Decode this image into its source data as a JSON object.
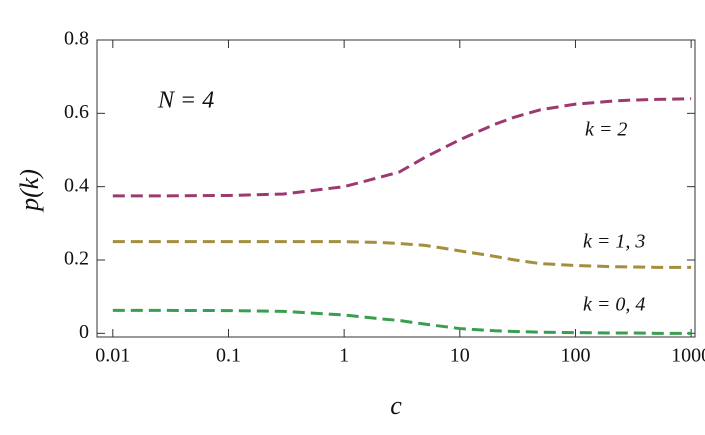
{
  "chart_data": {
    "type": "line",
    "x_label": "c",
    "y_label": "p(k)",
    "annotation": "N = 4",
    "x": [
      0.01,
      0.03,
      0.1,
      0.3,
      1,
      2,
      3,
      5,
      10,
      20,
      30,
      50,
      100,
      200,
      300,
      500,
      1000
    ],
    "series": [
      {
        "name": "k = 2",
        "color": "#9b3a72",
        "values": [
          0.375,
          0.375,
          0.376,
          0.38,
          0.4,
          0.425,
          0.44,
          0.48,
          0.528,
          0.57,
          0.59,
          0.61,
          0.625,
          0.633,
          0.636,
          0.638,
          0.64
        ]
      },
      {
        "name": "k = 1, 3",
        "color": "#a38f3e",
        "values": [
          0.25,
          0.25,
          0.25,
          0.25,
          0.25,
          0.248,
          0.245,
          0.24,
          0.225,
          0.21,
          0.2,
          0.19,
          0.185,
          0.182,
          0.181,
          0.18,
          0.18
        ]
      },
      {
        "name": "k = 0, 4",
        "color": "#3a9e50",
        "values": [
          0.0625,
          0.0625,
          0.062,
          0.06,
          0.05,
          0.04,
          0.035,
          0.025,
          0.013,
          0.007,
          0.005,
          0.003,
          0.002,
          0.001,
          0.001,
          0.0,
          0.0
        ]
      }
    ],
    "xscale": "log",
    "xlim": [
      0.0073,
      1080
    ],
    "xticks": [
      0.01,
      0.1,
      1,
      10,
      100,
      1000
    ],
    "ylim": [
      -0.01,
      0.8
    ],
    "yticks": [
      0,
      0.2,
      0.4,
      0.6,
      0.8
    ],
    "grid": false
  }
}
